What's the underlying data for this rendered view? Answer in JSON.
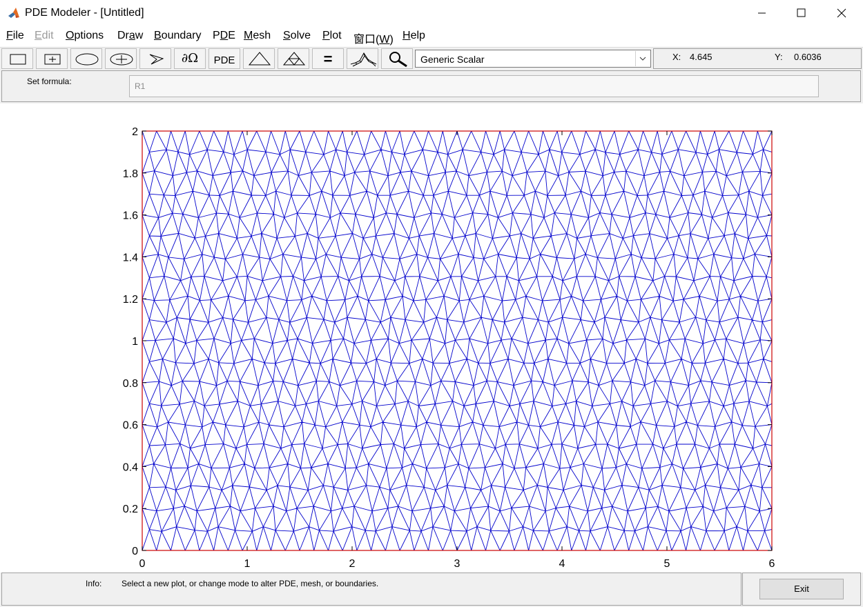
{
  "window": {
    "title": "PDE Modeler - [Untitled]",
    "app_icon": "matlab-icon",
    "controls": [
      "minimize-icon",
      "maximize-icon",
      "close-icon"
    ]
  },
  "menubar": {
    "items": [
      {
        "first": "F",
        "rest": "ile",
        "enabled": true
      },
      {
        "first": "E",
        "rest": "dit",
        "enabled": false
      },
      {
        "first": "O",
        "rest": "ptions",
        "enabled": true
      },
      {
        "pre": "Dr",
        "first": "a",
        "rest": "w",
        "enabled": true
      },
      {
        "first": "B",
        "rest": "oundary",
        "enabled": true
      },
      {
        "pre": "P",
        "first": "D",
        "rest": "E",
        "enabled": true
      },
      {
        "first": "M",
        "rest": "esh",
        "enabled": true
      },
      {
        "first": "S",
        "rest": "olve",
        "enabled": true
      },
      {
        "first": "P",
        "rest": "lot",
        "enabled": true
      },
      {
        "pre": "窗口(",
        "first": "W",
        "rest": ")",
        "enabled": true
      },
      {
        "first": "H",
        "rest": "elp",
        "enabled": true
      }
    ]
  },
  "toolbar": {
    "buttons": [
      {
        "icon": "rectangle-icon"
      },
      {
        "icon": "centered-rectangle-icon"
      },
      {
        "icon": "ellipse-icon"
      },
      {
        "icon": "centered-ellipse-icon"
      },
      {
        "icon": "polygon-icon"
      },
      {
        "icon": "boundary-mode-icon",
        "text": "∂Ω"
      },
      {
        "icon": "pde-spec-icon",
        "text": "PDE"
      },
      {
        "icon": "init-mesh-icon"
      },
      {
        "icon": "refine-mesh-icon"
      },
      {
        "icon": "solve-icon",
        "text": "="
      },
      {
        "icon": "plot-surface-icon"
      },
      {
        "icon": "zoom-icon"
      }
    ],
    "application_select": {
      "value": "Generic Scalar"
    },
    "coords": {
      "x_label": "X:",
      "x_value": "4.645",
      "y_label": "Y:",
      "y_value": "0.6036"
    }
  },
  "formula": {
    "label": "Set formula:",
    "value": "R1"
  },
  "axes": {
    "xlim": [
      0,
      6
    ],
    "ylim": [
      0,
      2
    ],
    "xticks": [
      "0",
      "1",
      "2",
      "3",
      "4",
      "5",
      "6"
    ],
    "yticks": [
      "0",
      "0.2",
      "0.4",
      "0.6",
      "0.8",
      "1",
      "1.2",
      "1.4",
      "1.6",
      "1.8",
      "2"
    ],
    "mesh_color": "#0000cc",
    "boundary_color": "#cc0000"
  },
  "status": {
    "info_label": "Info:",
    "info_text": "Select a new plot, or change mode to alter PDE, mesh, or boundaries.",
    "exit_label": "Exit"
  }
}
